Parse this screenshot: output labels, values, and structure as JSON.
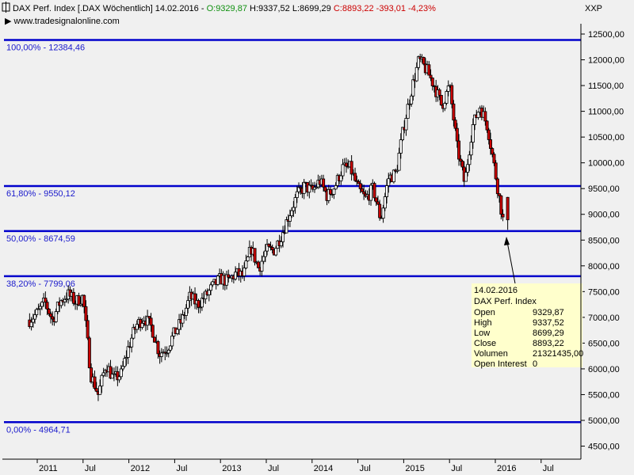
{
  "header": {
    "title_prefix": "DAX Perf. Index [.DAX  Wöchentlich] 14.02.2016 - ",
    "open": "O:9329,87",
    "high": "H:9337,52",
    "low": "L:8699,29",
    "close": "C:8893,22",
    "change": "-393,01",
    "change_pct": "-4,23%",
    "source": "www.tradesignalonline.com",
    "symbol": "XXP",
    "colors": {
      "open": "#109010",
      "close": "#cc0000",
      "text": "#000000"
    }
  },
  "chart_data": {
    "type": "candlestick",
    "title": "DAX Perf. Index [.DAX  Wöchentlich]",
    "ylim": [
      4500,
      12600
    ],
    "y_ticks": [
      "12500,00",
      "12000,00",
      "11500,00",
      "11000,00",
      "10500,00",
      "10000,00",
      "9500,00",
      "9000,00",
      "8500,00",
      "8000,00",
      "7500,00",
      "7000,00",
      "6500,00",
      "6000,00",
      "5500,00",
      "5000,00",
      "4500,00"
    ],
    "y_tick_values": [
      12500,
      12000,
      11500,
      11000,
      10500,
      10000,
      9500,
      9000,
      8500,
      8000,
      7500,
      7000,
      6500,
      6000,
      5500,
      5000,
      4500
    ],
    "x_ticks": [
      "2011",
      "Jul",
      "2012",
      "Jul",
      "2013",
      "Jul",
      "2014",
      "Jul",
      "2015",
      "Jul",
      "2016",
      "Jul"
    ],
    "x_tick_dates": [
      "2011-01",
      "2011-07",
      "2012-01",
      "2012-07",
      "2013-01",
      "2013-07",
      "2014-01",
      "2014-07",
      "2015-01",
      "2015-07",
      "2016-01",
      "2016-07"
    ],
    "fib_levels": [
      {
        "label": "100,00% - 12384,46",
        "value": 12384.46
      },
      {
        "label": "61,80% - 9550,12",
        "value": 9550.12
      },
      {
        "label": "50,00% - 8674,59",
        "value": 8674.59
      },
      {
        "label": "38,20% - 7799,06",
        "value": 7799.06
      },
      {
        "label": "0,00% - 4964,71",
        "value": 4964.71
      }
    ],
    "weekly_close": [
      {
        "date": "2010-12",
        "close": 6950
      },
      {
        "date": "2011-01",
        "close": 7080
      },
      {
        "date": "2011-02",
        "close": 7300
      },
      {
        "date": "2011-03",
        "close": 6950
      },
      {
        "date": "2011-04",
        "close": 7300
      },
      {
        "date": "2011-05",
        "close": 7450
      },
      {
        "date": "2011-06",
        "close": 7300
      },
      {
        "date": "2011-07",
        "close": 7400
      },
      {
        "date": "2011-08",
        "close": 5900
      },
      {
        "date": "2011-09",
        "close": 5500
      },
      {
        "date": "2011-10",
        "close": 6100
      },
      {
        "date": "2011-11",
        "close": 5800
      },
      {
        "date": "2011-12",
        "close": 5900
      },
      {
        "date": "2012-01",
        "close": 6450
      },
      {
        "date": "2012-02",
        "close": 6850
      },
      {
        "date": "2012-03",
        "close": 7000
      },
      {
        "date": "2012-04",
        "close": 6800
      },
      {
        "date": "2012-05",
        "close": 6300
      },
      {
        "date": "2012-06",
        "close": 6400
      },
      {
        "date": "2012-07",
        "close": 6700
      },
      {
        "date": "2012-08",
        "close": 6950
      },
      {
        "date": "2012-09",
        "close": 7400
      },
      {
        "date": "2012-10",
        "close": 7250
      },
      {
        "date": "2012-11",
        "close": 7400
      },
      {
        "date": "2012-12",
        "close": 7600
      },
      {
        "date": "2013-01",
        "close": 7750
      },
      {
        "date": "2013-02",
        "close": 7700
      },
      {
        "date": "2013-03",
        "close": 7850
      },
      {
        "date": "2013-04",
        "close": 7800
      },
      {
        "date": "2013-05",
        "close": 8350
      },
      {
        "date": "2013-06",
        "close": 7950
      },
      {
        "date": "2013-07",
        "close": 8300
      },
      {
        "date": "2013-08",
        "close": 8300
      },
      {
        "date": "2013-09",
        "close": 8600
      },
      {
        "date": "2013-10",
        "close": 9000
      },
      {
        "date": "2013-11",
        "close": 9350
      },
      {
        "date": "2013-12",
        "close": 9550
      },
      {
        "date": "2014-01",
        "close": 9450
      },
      {
        "date": "2014-02",
        "close": 9650
      },
      {
        "date": "2014-03",
        "close": 9350
      },
      {
        "date": "2014-04",
        "close": 9550
      },
      {
        "date": "2014-05",
        "close": 9900
      },
      {
        "date": "2014-06",
        "close": 9900
      },
      {
        "date": "2014-07",
        "close": 9500
      },
      {
        "date": "2014-08",
        "close": 9300
      },
      {
        "date": "2014-09",
        "close": 9500
      },
      {
        "date": "2014-10",
        "close": 8900
      },
      {
        "date": "2014-11",
        "close": 9700
      },
      {
        "date": "2014-12",
        "close": 9800
      },
      {
        "date": "2015-01",
        "close": 10700
      },
      {
        "date": "2015-02",
        "close": 11400
      },
      {
        "date": "2015-03",
        "close": 12000
      },
      {
        "date": "2015-04",
        "close": 11800
      },
      {
        "date": "2015-05",
        "close": 11500
      },
      {
        "date": "2015-06",
        "close": 11100
      },
      {
        "date": "2015-07",
        "close": 11500
      },
      {
        "date": "2015-08",
        "close": 10300
      },
      {
        "date": "2015-09",
        "close": 9600
      },
      {
        "date": "2015-10",
        "close": 10700
      },
      {
        "date": "2015-11",
        "close": 11100
      },
      {
        "date": "2015-12",
        "close": 10700
      },
      {
        "date": "2016-01",
        "close": 9800
      },
      {
        "date": "2016-02",
        "close": 8893
      }
    ],
    "colors": {
      "fib_line": "#0000cc",
      "candle_up": "#ffffff",
      "candle_down": "#cc0000",
      "plot_bg": "#f0f0f0"
    }
  },
  "info_box": {
    "date": "14.02.2016",
    "name": "DAX Perf. Index",
    "rows": [
      {
        "label": "Open",
        "value": "9329,87"
      },
      {
        "label": "High",
        "value": "9337,52"
      },
      {
        "label": "Low",
        "value": "8699,29"
      },
      {
        "label": "Close",
        "value": "8893,22"
      },
      {
        "label": "Volumen",
        "value": "21321435,00"
      },
      {
        "label": "Open Interest",
        "value": "0"
      }
    ],
    "bg": "#ffffcc"
  }
}
